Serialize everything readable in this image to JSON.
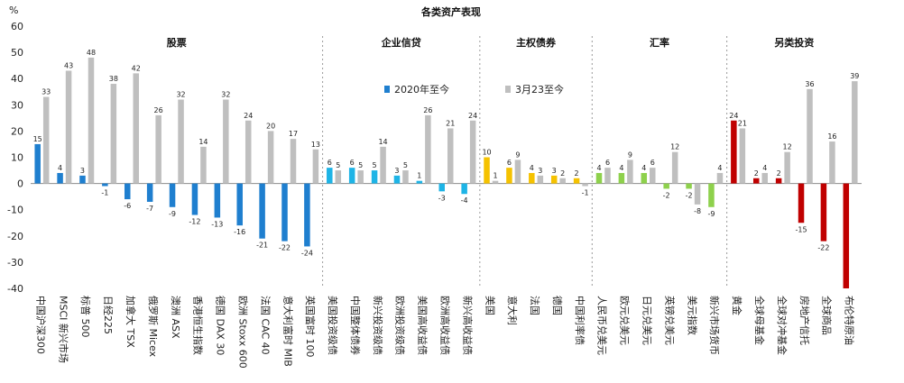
{
  "chart_data": {
    "type": "bar",
    "title": "各类资产表现",
    "ylabel": "%",
    "ylim": [
      -40,
      60
    ],
    "yticks": [
      -40,
      -30,
      -20,
      -10,
      0,
      10,
      20,
      30,
      40,
      50,
      60
    ],
    "legend_position": "top-center",
    "group_labels": [
      "股票",
      "企业信贷",
      "主权债券",
      "汇率",
      "另类投资"
    ],
    "group_sizes": [
      13,
      7,
      5,
      6,
      6
    ],
    "categories": [
      "中国沪深300",
      "MSCI 新兴市场",
      "标普 500",
      "日经225",
      "加拿大 TSX",
      "俄罗斯 Micex",
      "澳洲 ASX",
      "香港恒生指数",
      "德国 DAX 30",
      "欧洲 Stoxx 600",
      "法国 CAC 40",
      "意大利富时 MIB",
      "英国富时 100",
      "美国投资级债",
      "中国整体债券",
      "新兴投资级债",
      "欧洲投资级债",
      "美国高收益债",
      "欧洲高收益债",
      "新兴高收益债",
      "美国",
      "意大利",
      "法国",
      "德国",
      "中国利率债",
      "人民币兑美元",
      "欧元兑美元",
      "日元兑美元",
      "英镑兑美元",
      "美元指数",
      "新兴市场货币",
      "黄金",
      "全球母基金",
      "全球对冲基金",
      "房地产信托",
      "全球商品",
      "布伦特原油"
    ],
    "series": [
      {
        "name": "2020年至今",
        "values": [
          15,
          4,
          3,
          -1,
          -6,
          -7,
          -9,
          -12,
          -13,
          -16,
          -21,
          -22,
          -24,
          6,
          6,
          5,
          3,
          1,
          -3,
          -4,
          10,
          6,
          4,
          3,
          2,
          4,
          4,
          4,
          -2,
          -2,
          -9,
          24,
          2,
          2,
          -15,
          -22,
          -40
        ],
        "labels": [
          "15",
          "4",
          "3",
          "-1",
          "-6",
          "-7",
          "-9",
          "-12",
          "-13",
          "-16",
          "-21",
          "-22",
          "-24",
          "6",
          "6",
          "5",
          "3",
          "1",
          "-3",
          "-4",
          "10",
          "6",
          "4",
          "3",
          "2",
          "4",
          "4",
          "4",
          "-2",
          "-2",
          "-9",
          "24",
          "2",
          "2",
          "-15",
          "-22",
          ""
        ]
      },
      {
        "name": "3月23至今",
        "values": [
          33,
          43,
          48,
          38,
          42,
          26,
          32,
          14,
          32,
          24,
          20,
          17,
          13,
          5,
          5,
          14,
          5,
          26,
          21,
          24,
          1,
          9,
          3,
          2,
          -1,
          6,
          9,
          6,
          12,
          -8,
          4,
          21,
          4,
          12,
          36,
          16,
          39
        ],
        "labels": [
          "33",
          "43",
          "48",
          "38",
          "42",
          "26",
          "32",
          "14",
          "32",
          "24",
          "20",
          "17",
          "13",
          "5",
          "5",
          "14",
          "5",
          "26",
          "21",
          "24",
          "1",
          "9",
          "3",
          "2",
          "-1",
          "6",
          "9",
          "6",
          "12",
          "-8",
          "4",
          "21",
          "4",
          "12",
          "36",
          "16",
          "39"
        ]
      }
    ],
    "colors": {
      "series2": "#bfbfbf",
      "group_series1": [
        "#1f7fcf",
        "#1eb4e6",
        "#f5c200",
        "#8ed14c",
        "#c00000"
      ]
    }
  }
}
